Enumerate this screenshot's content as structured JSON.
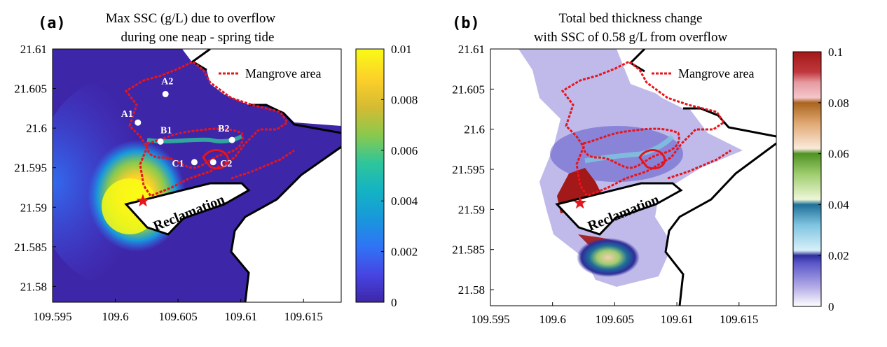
{
  "chart_data": [
    {
      "type": "heatmap",
      "panel": "(a)",
      "title": "Max SSC (g/L) due to overflow",
      "subtitle": "during one neap - spring tide",
      "xlim": [
        109.595,
        109.618
      ],
      "ylim": [
        21.578,
        21.61
      ],
      "x_ticks": [
        "109.595",
        "109.6",
        "109.605",
        "109.61",
        "109.615"
      ],
      "y_ticks": [
        "21.61",
        "21.605",
        "21.6",
        "21.595",
        "21.59",
        "21.585",
        "21.58"
      ],
      "colorbar": {
        "min": 0,
        "max": 0.01,
        "ticks": [
          "0.01",
          "0.008",
          "0.006",
          "0.004",
          "0.002",
          "0"
        ],
        "colormap": "parula"
      },
      "legend": {
        "entries": [
          "Mangrove area"
        ],
        "style": "red dotted line",
        "placement": "top-right"
      },
      "annotations": [
        "A1",
        "A2",
        "B1",
        "B2",
        "C1",
        "C2",
        "Reclamation"
      ],
      "sites": [
        {
          "label": "A1",
          "x": 109.6018,
          "y": 21.6007
        },
        {
          "label": "A2",
          "x": 109.604,
          "y": 21.6043
        },
        {
          "label": "B1",
          "x": 109.6036,
          "y": 21.5983
        },
        {
          "label": "B2",
          "x": 109.6093,
          "y": 21.5985
        },
        {
          "label": "C1",
          "x": 109.6063,
          "y": 21.5957
        },
        {
          "label": "C2",
          "x": 109.6078,
          "y": 21.5957
        }
      ],
      "discharge_point": {
        "marker": "red star",
        "x": 109.6022,
        "y": 21.5908
      }
    },
    {
      "type": "heatmap",
      "panel": "(b)",
      "title": "Total bed thickness change",
      "subtitle": "with SSC of 0.58 g/L from overflow",
      "xlim": [
        109.595,
        109.618
      ],
      "ylim": [
        21.578,
        21.61
      ],
      "x_ticks": [
        "109.595",
        "109.6",
        "109.605",
        "109.61",
        "109.615"
      ],
      "y_ticks": [
        "21.61",
        "21.605",
        "21.6",
        "21.595",
        "21.59",
        "21.585",
        "21.58"
      ],
      "colorbar": {
        "min": 0,
        "max": 0.1,
        "ticks": [
          "0.1",
          "0.08",
          "0.06",
          "0.04",
          "0.02",
          "0"
        ],
        "colormap": "banded"
      },
      "legend": {
        "entries": [
          "Mangrove area"
        ],
        "style": "red dotted line",
        "placement": "top-right"
      },
      "annotations": [
        "Reclamation"
      ],
      "discharge_point": {
        "marker": "red star",
        "x": 109.6022,
        "y": 21.5908
      }
    }
  ],
  "colors": {
    "mangrove": "#e8141b",
    "coast": "#000000",
    "parula": [
      "#3e26a8",
      "#4745e3",
      "#2f74f6",
      "#1898db",
      "#14b3c3",
      "#2ec59b",
      "#8ac94d",
      "#d5bb32",
      "#fcd02a",
      "#f9fb15"
    ],
    "banded": [
      "#ffffff",
      "#b9b2e8",
      "#2e2d9a",
      "#b3e0f0",
      "#1f6f99",
      "#d8eeb8",
      "#4f9224",
      "#f4cfae",
      "#a9641e",
      "#e59aa0",
      "#a31818"
    ]
  }
}
